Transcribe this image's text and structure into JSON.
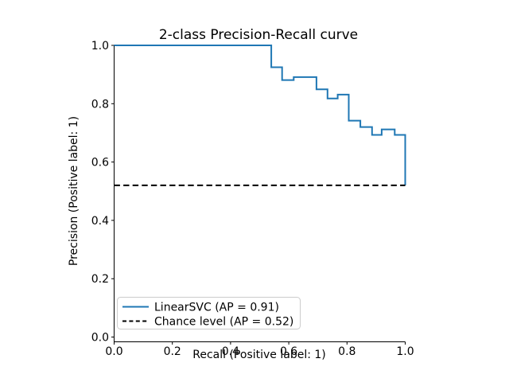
{
  "chart_data": {
    "type": "line",
    "title": "2-class Precision-Recall curve",
    "xlabel": "Recall (Positive label: 1)",
    "ylabel": "Precision (Positive label: 1)",
    "xlim": [
      0.0,
      1.0
    ],
    "ylim": [
      0.0,
      1.0
    ],
    "grid": false,
    "legend_position": "lower left",
    "xticks": [
      0.0,
      0.2,
      0.4,
      0.6,
      0.8,
      1.0
    ],
    "xtick_labels": [
      "0.0",
      "0.2",
      "0.4",
      "0.6",
      "0.8",
      "1.0"
    ],
    "yticks": [
      0.0,
      0.2,
      0.4,
      0.6,
      0.8,
      1.0
    ],
    "ytick_labels": [
      "0.0",
      "0.2",
      "0.4",
      "0.6",
      "0.8",
      "1.0"
    ],
    "colors": {
      "linearsvc_line": "#1f77b4",
      "chance_line": "#000000",
      "legend_border": "#cccccc",
      "axis": "#000000"
    },
    "series": [
      {
        "name": "LinearSVC (AP = 0.91)",
        "ap": 0.91,
        "color": "#1f77b4",
        "style": "solid",
        "points": [
          [
            0.0,
            1.0
          ],
          [
            0.54,
            1.0
          ],
          [
            0.54,
            0.925
          ],
          [
            0.577,
            0.925
          ],
          [
            0.577,
            0.881
          ],
          [
            0.617,
            0.881
          ],
          [
            0.617,
            0.891
          ],
          [
            0.695,
            0.891
          ],
          [
            0.695,
            0.849
          ],
          [
            0.733,
            0.849
          ],
          [
            0.733,
            0.818
          ],
          [
            0.768,
            0.818
          ],
          [
            0.768,
            0.831
          ],
          [
            0.806,
            0.831
          ],
          [
            0.806,
            0.742
          ],
          [
            0.846,
            0.742
          ],
          [
            0.846,
            0.72
          ],
          [
            0.886,
            0.72
          ],
          [
            0.886,
            0.693
          ],
          [
            0.919,
            0.693
          ],
          [
            0.919,
            0.712
          ],
          [
            0.964,
            0.712
          ],
          [
            0.964,
            0.693
          ],
          [
            1.0,
            0.693
          ],
          [
            1.0,
            0.52
          ]
        ]
      },
      {
        "name": "Chance level (AP = 0.52)",
        "ap": 0.52,
        "color": "#000000",
        "style": "dashed",
        "points": [
          [
            0.0,
            0.52
          ],
          [
            1.0,
            0.52
          ]
        ]
      }
    ]
  }
}
